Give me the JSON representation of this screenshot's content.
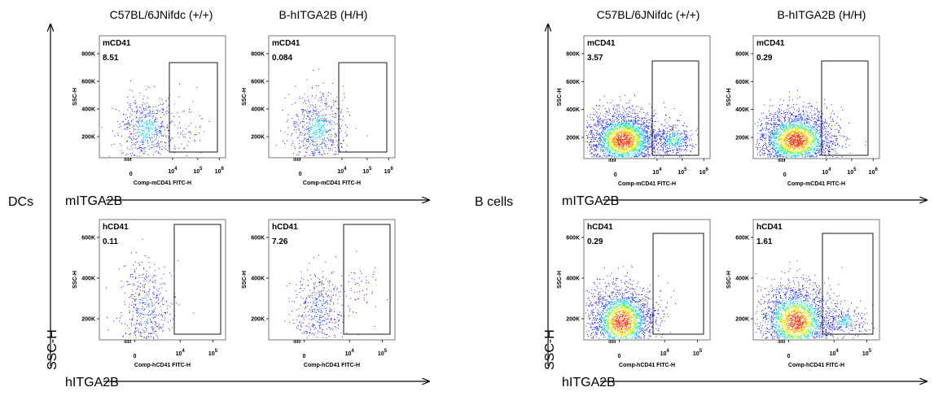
{
  "left_panel": {
    "group_label": "DCs",
    "strain_headers": [
      "C57BL/6JNifdc  (+/+)",
      "B-hITGA2B (H/H)"
    ]
  },
  "right_panel": {
    "group_label": "B cells",
    "strain_headers": [
      "C57BL/6JNifdc  (+/+)",
      "B-hITGA2B (H/H)"
    ]
  },
  "axis_titles": {
    "y_arrow": "SSC-H",
    "x_arrow_top": "mITGA2B",
    "x_arrow_bottom": "hITGA2B"
  },
  "chart_data": [
    {
      "type": "scatter",
      "panel": "DCs",
      "strain": "C57BL/6JNifdc  (+/+)",
      "gate": "mCD41",
      "gate_percent": "8.51",
      "xlabel": "Comp-mCD41 FITC-H",
      "ylabel": "SSC-H",
      "yticks": [
        "200K",
        "400K",
        "600K",
        "800K"
      ],
      "xticks": [
        "0",
        "10^4",
        "10^5",
        "10^6"
      ]
    },
    {
      "type": "scatter",
      "panel": "DCs",
      "strain": "B-hITGA2B (H/H)",
      "gate": "mCD41",
      "gate_percent": "0.084",
      "xlabel": "Comp-mCD41 FITC-H",
      "ylabel": "SSC-H",
      "yticks": [
        "200K",
        "400K",
        "600K",
        "800K"
      ],
      "xticks": [
        "0",
        "10^4",
        "10^5",
        "10^6"
      ]
    },
    {
      "type": "scatter",
      "panel": "DCs",
      "strain": "C57BL/6JNifdc  (+/+)",
      "gate": "hCD41",
      "gate_percent": "0.11",
      "xlabel": "Comp-hCD41 FITC-H",
      "ylabel": "SSC-H",
      "yticks": [
        "200K",
        "400K",
        "600K"
      ],
      "xticks": [
        "0",
        "10^4",
        "10^5"
      ]
    },
    {
      "type": "scatter",
      "panel": "DCs",
      "strain": "B-hITGA2B (H/H)",
      "gate": "hCD41",
      "gate_percent": "7.26",
      "xlabel": "Comp-hCD41 FITC-H",
      "ylabel": "SSC-H",
      "yticks": [
        "200K",
        "400K",
        "600K"
      ],
      "xticks": [
        "0",
        "10^4",
        "10^5"
      ]
    },
    {
      "type": "scatter",
      "panel": "B cells",
      "strain": "C57BL/6JNifdc  (+/+)",
      "gate": "mCD41",
      "gate_percent": "3.57",
      "xlabel": "Comp-mCD41 FITC-H",
      "ylabel": "SSC-H",
      "yticks": [
        "200K",
        "400K",
        "600K",
        "800K"
      ],
      "xticks": [
        "0",
        "10^4",
        "10^5",
        "10^6"
      ]
    },
    {
      "type": "scatter",
      "panel": "B cells",
      "strain": "B-hITGA2B (H/H)",
      "gate": "mCD41",
      "gate_percent": "0.29",
      "xlabel": "Comp-mCD41 FITC-H",
      "ylabel": "SSC-H",
      "yticks": [
        "200K",
        "400K",
        "600K",
        "800K"
      ],
      "xticks": [
        "0",
        "10^4",
        "10^5",
        "10^6"
      ]
    },
    {
      "type": "scatter",
      "panel": "B cells",
      "strain": "C57BL/6JNifdc  (+/+)",
      "gate": "hCD41",
      "gate_percent": "0.29",
      "xlabel": "Comp-hCD41 FITC-H",
      "ylabel": "SSC-H",
      "yticks": [
        "200K",
        "400K",
        "600K"
      ],
      "xticks": [
        "0",
        "10^4",
        "10^5"
      ]
    },
    {
      "type": "scatter",
      "panel": "B cells",
      "strain": "B-hITGA2B (H/H)",
      "gate": "hCD41",
      "gate_percent": "1.61",
      "xlabel": "Comp-hCD41 FITC-H",
      "ylabel": "SSC-H",
      "yticks": [
        "200K",
        "400K",
        "600K"
      ],
      "xticks": [
        "0",
        "10^4",
        "10^5"
      ]
    }
  ]
}
